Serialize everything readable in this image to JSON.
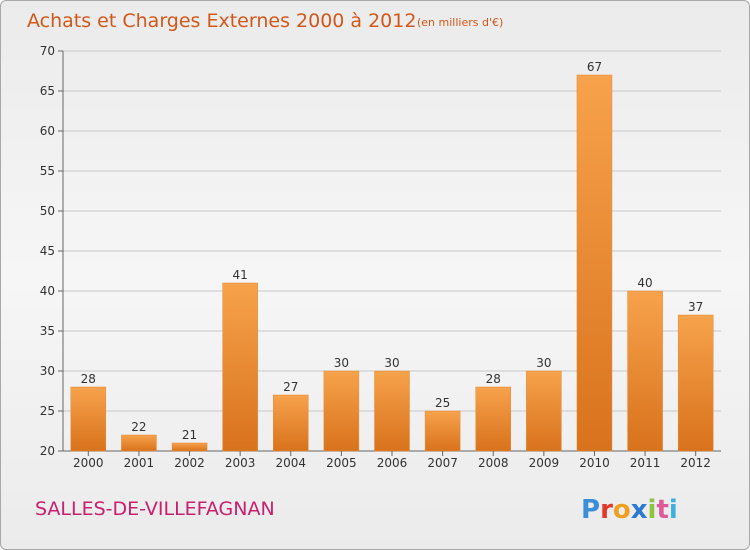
{
  "chart_data": {
    "type": "bar",
    "title": "Achats et Charges Externes 2000 à 2012",
    "subtitle": "(en milliers d'€)",
    "categories": [
      "2000",
      "2001",
      "2002",
      "2003",
      "2004",
      "2005",
      "2006",
      "2007",
      "2008",
      "2009",
      "2010",
      "2011",
      "2012"
    ],
    "values": [
      28,
      22,
      21,
      41,
      27,
      30,
      30,
      25,
      28,
      30,
      67,
      40,
      37
    ],
    "ylim": [
      20,
      70
    ],
    "yticks": [
      20,
      25,
      30,
      35,
      40,
      45,
      50,
      55,
      60,
      65,
      70
    ],
    "xlabel": "",
    "ylabel": "",
    "grid": true,
    "bar_color": "#f08c2e"
  },
  "footer": {
    "commune": "SALLES-DE-VILLEFAGNAN",
    "logo": "Proxiti"
  },
  "colors": {
    "title": "#d2581a",
    "commune": "#c8206e",
    "logo_p": "#3a8fd8",
    "logo_r": "#e03a2a",
    "logo_o": "#f0a020",
    "logo_x": "#2a7ad0",
    "logo_i": "#8cc63e",
    "logo_t": "#e05a9a",
    "logo_i2": "#3cb0e0"
  }
}
